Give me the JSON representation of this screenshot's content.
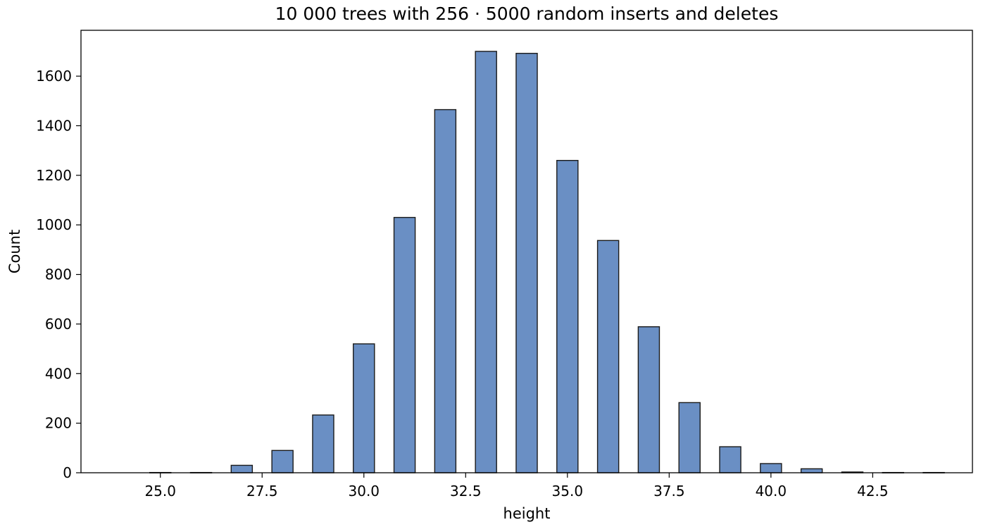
{
  "chart_data": {
    "type": "bar",
    "title": "10 000 trees with 256 · 5000 random inserts and deletes",
    "xlabel": "height",
    "ylabel": "Count",
    "xlim": [
      23.05,
      44.95
    ],
    "ylim": [
      0,
      1785
    ],
    "bar_width": 0.52,
    "xticks": [
      25.0,
      27.5,
      30.0,
      32.5,
      35.0,
      37.5,
      40.0,
      42.5
    ],
    "xtick_labels": [
      "25.0",
      "27.5",
      "30.0",
      "32.5",
      "35.0",
      "37.5",
      "40.0",
      "42.5"
    ],
    "yticks": [
      0,
      200,
      400,
      600,
      800,
      1000,
      1200,
      1400,
      1600
    ],
    "ytick_labels": [
      "0",
      "200",
      "400",
      "600",
      "800",
      "1000",
      "1200",
      "1400",
      "1600"
    ],
    "grid": false,
    "bar_color": "#6a8fc4",
    "bar_edge_color": "#1a1a1a",
    "x": [
      25,
      26,
      27,
      28,
      29,
      30,
      31,
      32,
      33,
      34,
      35,
      36,
      37,
      38,
      39,
      40,
      41,
      42,
      43,
      44
    ],
    "values": [
      1,
      1,
      30,
      90,
      233,
      520,
      1030,
      1465,
      1700,
      1692,
      1260,
      937,
      589,
      283,
      105,
      37,
      16,
      3,
      1,
      1
    ]
  }
}
